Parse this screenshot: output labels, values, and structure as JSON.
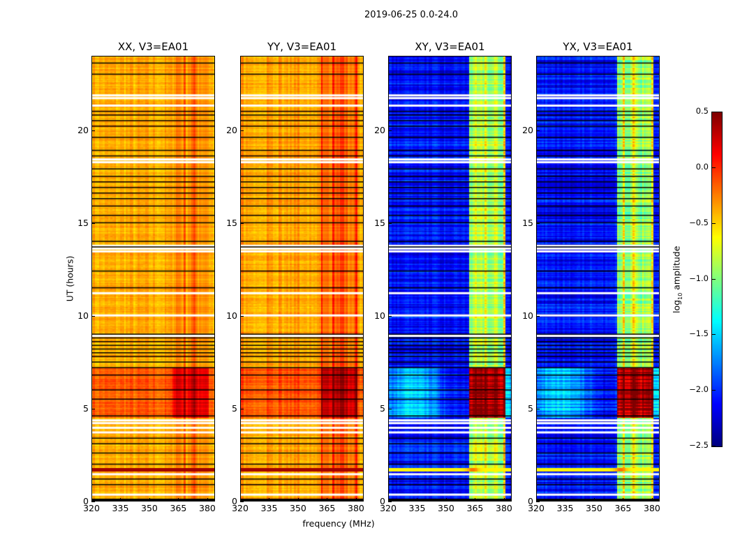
{
  "figure": {
    "suptitle": "2019-06-25 0.0-24.0"
  },
  "chart_data": {
    "type": "heatmap",
    "title": "2019-06-25 0.0-24.0",
    "xlabel": "frequency (MHz)",
    "ylabel": "UT (hours)",
    "xlim": [
      320,
      384
    ],
    "ylim": [
      0,
      24
    ],
    "xticks": [
      "320",
      "335",
      "350",
      "365",
      "380"
    ],
    "xtick_values": [
      320,
      335,
      350,
      365,
      380
    ],
    "yticks": [
      "0",
      "5",
      "10",
      "15",
      "20"
    ],
    "ytick_values": [
      0,
      5,
      10,
      15,
      20
    ],
    "colormap": "jet",
    "panels": [
      {
        "title": "XX, V3=EA01",
        "base_level": -0.4,
        "band_level": -0.25,
        "night_boost": 0.25,
        "show_xlabel": false,
        "show_ylabel": true
      },
      {
        "title": "YY, V3=EA01",
        "base_level": -0.35,
        "band_level": -0.1,
        "night_boost": 0.25,
        "show_xlabel": true,
        "show_ylabel": false
      },
      {
        "title": "XY, V3=EA01",
        "base_level": -2.1,
        "band_level": -0.9,
        "night_boost": 0.3,
        "show_xlabel": false,
        "show_ylabel": false
      },
      {
        "title": "YX, V3=EA01",
        "base_level": -2.1,
        "band_level": -0.9,
        "night_boost": 0.3,
        "show_xlabel": false,
        "show_ylabel": false
      }
    ],
    "rfi_band_mhz": [
      362,
      381
    ],
    "night_hours": [
      4.5,
      7.2
    ],
    "rfi_burst_hour": 1.7,
    "flagged_line_hours": [
      0.9,
      1.2,
      2.0,
      2.6,
      3.1,
      3.4,
      4.6,
      5.5,
      6.0,
      6.8,
      7.2,
      7.5,
      7.8,
      8.0,
      8.2,
      8.4,
      8.6,
      8.8,
      9.0,
      11.5,
      12.4,
      13.7,
      14.0,
      15.0,
      15.4,
      15.9,
      16.3,
      16.6,
      16.9,
      17.2,
      17.5,
      17.9,
      18.6,
      18.9,
      19.6,
      20.2,
      20.5,
      20.8,
      21.0,
      23.0,
      23.6
    ],
    "blank_row_hours": [
      0.35,
      1.45,
      3.7,
      3.95,
      4.2,
      4.35,
      8.9,
      10.0,
      11.2,
      13.45,
      13.6,
      13.75,
      18.25,
      18.4,
      21.3,
      21.7,
      21.85
    ],
    "colorbar": {
      "label": "log10 amplitude",
      "range": [
        -2.5,
        0.5
      ],
      "ticks": [
        "0.5",
        "0.0",
        "−0.5",
        "−1.0",
        "−1.5",
        "−2.0",
        "−2.5"
      ],
      "tick_values": [
        0.5,
        0.0,
        -0.5,
        -1.0,
        -1.5,
        -2.0,
        -2.5
      ]
    }
  }
}
